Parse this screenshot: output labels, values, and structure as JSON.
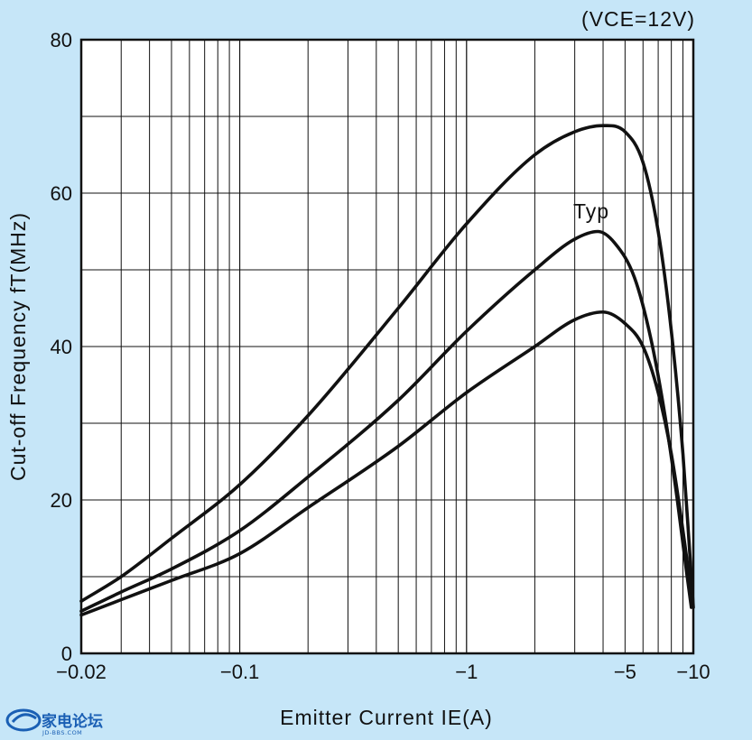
{
  "chart_data": {
    "type": "line",
    "title": "",
    "annotation_condition": "(VCE=12V)",
    "xlabel": "Emitter Current IE(A)",
    "ylabel": "Cut-off Frequency fT(MHz)",
    "x_scale": "log",
    "x_reversed_sign": true,
    "xlim": [
      -0.02,
      -10
    ],
    "ylim": [
      0,
      80
    ],
    "grid": true,
    "x_ticks": [
      {
        "value": -0.02,
        "label": "−0.02"
      },
      {
        "value": -0.1,
        "label": "−0.1"
      },
      {
        "value": -1,
        "label": "−1"
      },
      {
        "value": -5,
        "label": "−5"
      },
      {
        "value": -10,
        "label": "−10"
      }
    ],
    "y_ticks": [
      {
        "value": 0,
        "label": "0"
      },
      {
        "value": 20,
        "label": "20"
      },
      {
        "value": 40,
        "label": "40"
      },
      {
        "value": 60,
        "label": "60"
      },
      {
        "value": 80,
        "label": "80"
      }
    ],
    "typ_label": "Typ",
    "series": [
      {
        "x": [
          -0.02,
          -0.03,
          -0.05,
          -0.1,
          -0.2,
          -0.5,
          -1,
          -2,
          -3,
          -4,
          -5,
          -6,
          -7,
          -8,
          -9,
          -9.6,
          -10
        ],
        "y": [
          6.8,
          10,
          15,
          22,
          31,
          45,
          56,
          65,
          68,
          68.8,
          68,
          64,
          55,
          42,
          26,
          14,
          6
        ]
      },
      {
        "x": [
          -0.02,
          -0.03,
          -0.05,
          -0.1,
          -0.2,
          -0.5,
          -1,
          -2,
          -3,
          -3.8,
          -4.5,
          -5.5,
          -6.5,
          -7.5,
          -8.5,
          -9.3,
          -9.8
        ],
        "y": [
          5.5,
          8,
          11,
          16,
          23,
          33,
          42,
          50,
          54,
          55,
          53.5,
          49,
          41,
          31,
          20,
          11,
          6
        ]
      },
      {
        "x": [
          -0.02,
          -0.03,
          -0.05,
          -0.1,
          -0.2,
          -0.5,
          -1,
          -2,
          -3,
          -4,
          -5,
          -6,
          -7,
          -8,
          -9,
          -9.8
        ],
        "y": [
          5,
          7,
          9.5,
          13,
          19,
          27,
          34,
          40,
          43.5,
          44.5,
          43,
          40,
          34,
          26,
          16,
          8
        ]
      }
    ]
  },
  "watermark": {
    "logo_text": "家电论坛",
    "logo_sub": "JD-BBS.COM"
  }
}
